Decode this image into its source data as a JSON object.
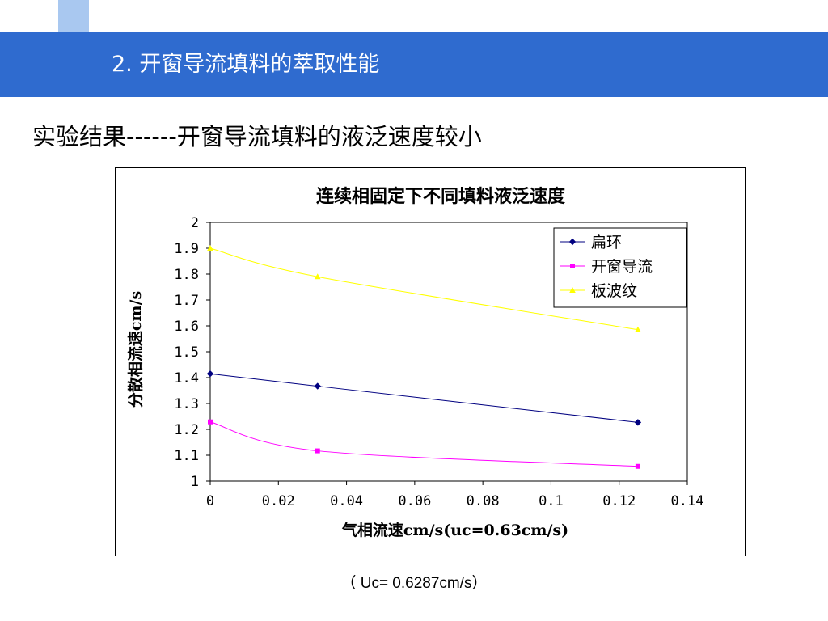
{
  "slide": {
    "title": "2. 开窗导流填料的萃取性能",
    "subtitle": "实验结果------开窗导流填料的液泛速度较小",
    "caption": "（ Uc= 0.6287cm/s）",
    "header_color": "#2f6bcf"
  },
  "chart_data": {
    "type": "line",
    "title": "连续相固定下不同填料液泛速度",
    "xlabel": "气相流速cm/s(uc=0.63cm/s)",
    "ylabel": "分散相流速cm/s",
    "xlim": [
      0,
      0.14
    ],
    "ylim": [
      1,
      2
    ],
    "x_ticks": [
      "0",
      "0.02",
      "0.04",
      "0.06",
      "0.08",
      "0.1",
      "0.12",
      "0.14"
    ],
    "y_ticks": [
      "1",
      "1.1",
      "1.2",
      "1.3",
      "1.4",
      "1.5",
      "1.6",
      "1.7",
      "1.8",
      "1.9",
      "2"
    ],
    "grid": false,
    "legend_position": "top-right",
    "series": [
      {
        "name": "扁环",
        "color": "#000080",
        "marker": "diamond",
        "x": [
          0,
          0.0315,
          0.1255
        ],
        "y": [
          1.415,
          1.367,
          1.227
        ]
      },
      {
        "name": "开窗导流",
        "color": "#ff00ff",
        "marker": "square",
        "x": [
          0,
          0.0315,
          0.1255
        ],
        "y": [
          1.229,
          1.117,
          1.057
        ]
      },
      {
        "name": "板波纹",
        "color": "#ffff00",
        "marker": "triangle",
        "x": [
          0,
          0.0315,
          0.1255
        ],
        "y": [
          1.9,
          1.79,
          1.585
        ]
      }
    ]
  }
}
